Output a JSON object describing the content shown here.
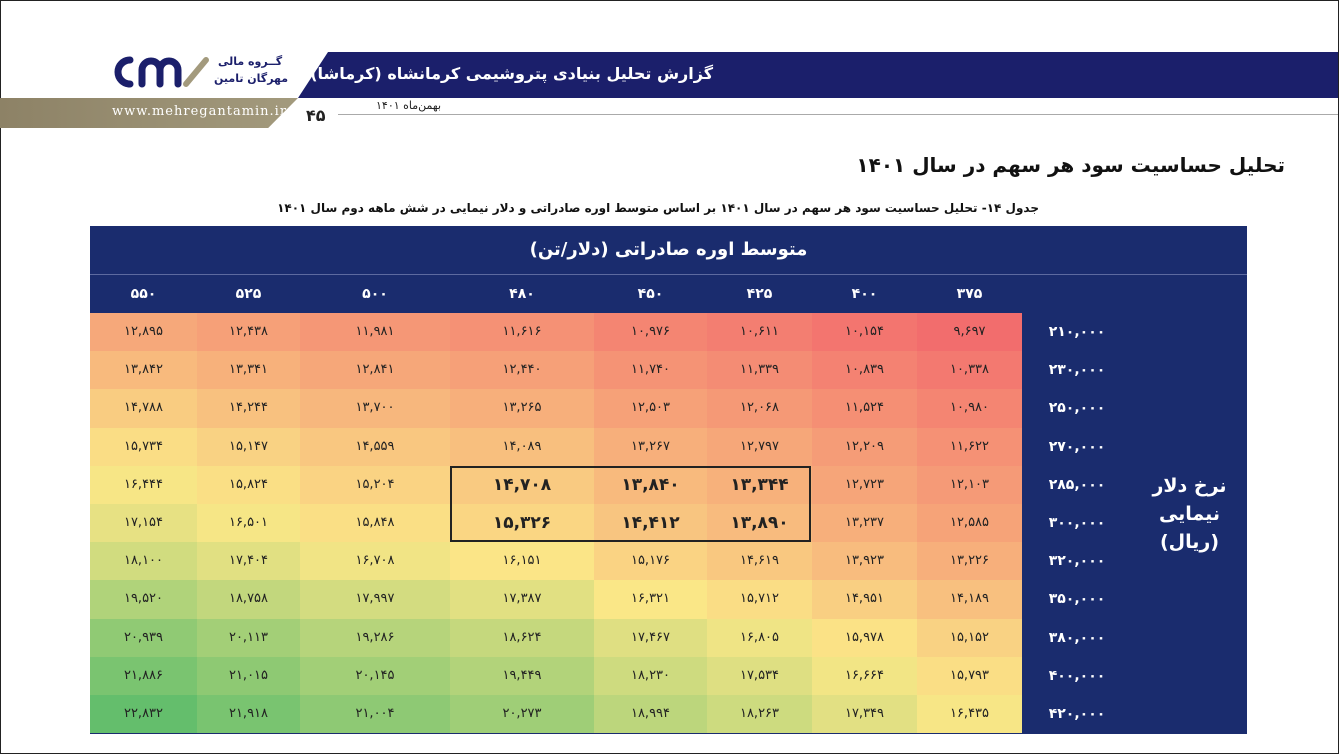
{
  "header": {
    "title": "گزارش تحلیل بنیادی پتروشیمی کرمانشاه (کرماشا)",
    "date": "بهمن‌ماه ۱۴۰۱",
    "page_number": "۴۵",
    "url": "www.mehregantamin.ir",
    "logo_line1": "گــروه مالی",
    "logo_line2": "مهرگان تامین"
  },
  "section_title": "تحلیل حساسیت سود هر سهم در سال ۱۴۰۱",
  "caption": "جدول ۱۴- تحلیل حساسیت سود هر سهم در سال ۱۴۰۱ بر اساس متوسط اوره صادراتی و دلار نیمایی در شش ماهه دوم سال ۱۴۰۱",
  "table": {
    "col_group_title": "متوسط اوره صادراتی (دلار/تن)",
    "row_group_title": "نرخ دلار نیمایی (ریال)",
    "col_headers": [
      "۵۵۰",
      "۵۲۵",
      "۵۰۰",
      "۴۸۰",
      "۴۵۰",
      "۴۲۵",
      "۴۰۰",
      "۳۷۵"
    ],
    "row_headers": [
      "۲۱۰,۰۰۰",
      "۲۳۰,۰۰۰",
      "۲۵۰,۰۰۰",
      "۲۷۰,۰۰۰",
      "۲۸۵,۰۰۰",
      "۳۰۰,۰۰۰",
      "۳۲۰,۰۰۰",
      "۳۵۰,۰۰۰",
      "۳۸۰,۰۰۰",
      "۴۰۰,۰۰۰",
      "۴۲۰,۰۰۰"
    ],
    "rows": [
      [
        "۱۲,۸۹۵",
        "۱۲,۴۳۸",
        "۱۱,۹۸۱",
        "۱۱,۶۱۶",
        "۱۰,۹۷۶",
        "۱۰,۶۱۱",
        "۱۰,۱۵۴",
        "۹,۶۹۷"
      ],
      [
        "۱۳,۸۴۲",
        "۱۳,۳۴۱",
        "۱۲,۸۴۱",
        "۱۲,۴۴۰",
        "۱۱,۷۴۰",
        "۱۱,۳۳۹",
        "۱۰,۸۳۹",
        "۱۰,۳۳۸"
      ],
      [
        "۱۴,۷۸۸",
        "۱۴,۲۴۴",
        "۱۳,۷۰۰",
        "۱۳,۲۶۵",
        "۱۲,۵۰۳",
        "۱۲,۰۶۸",
        "۱۱,۵۲۴",
        "۱۰,۹۸۰"
      ],
      [
        "۱۵,۷۳۴",
        "۱۵,۱۴۷",
        "۱۴,۵۵۹",
        "۱۴,۰۸۹",
        "۱۳,۲۶۷",
        "۱۲,۷۹۷",
        "۱۲,۲۰۹",
        "۱۱,۶۲۲"
      ],
      [
        "۱۶,۴۴۴",
        "۱۵,۸۲۴",
        "۱۵,۲۰۴",
        "۱۴,۷۰۸",
        "۱۳,۸۴۰",
        "۱۳,۳۴۴",
        "۱۲,۷۲۳",
        "۱۲,۱۰۳"
      ],
      [
        "۱۷,۱۵۴",
        "۱۶,۵۰۱",
        "۱۵,۸۴۸",
        "۱۵,۳۲۶",
        "۱۴,۴۱۲",
        "۱۳,۸۹۰",
        "۱۳,۲۳۷",
        "۱۲,۵۸۵"
      ],
      [
        "۱۸,۱۰۰",
        "۱۷,۴۰۴",
        "۱۶,۷۰۸",
        "۱۶,۱۵۱",
        "۱۵,۱۷۶",
        "۱۴,۶۱۹",
        "۱۳,۹۲۳",
        "۱۳,۲۲۶"
      ],
      [
        "۱۹,۵۲۰",
        "۱۸,۷۵۸",
        "۱۷,۹۹۷",
        "۱۷,۳۸۷",
        "۱۶,۳۲۱",
        "۱۵,۷۱۲",
        "۱۴,۹۵۱",
        "۱۴,۱۸۹"
      ],
      [
        "۲۰,۹۳۹",
        "۲۰,۱۱۳",
        "۱۹,۲۸۶",
        "۱۸,۶۲۴",
        "۱۷,۴۶۷",
        "۱۶,۸۰۵",
        "۱۵,۹۷۸",
        "۱۵,۱۵۲"
      ],
      [
        "۲۱,۸۸۶",
        "۲۱,۰۱۵",
        "۲۰,۱۴۵",
        "۱۹,۴۴۹",
        "۱۸,۲۳۰",
        "۱۷,۵۳۴",
        "۱۶,۶۶۴",
        "۱۵,۷۹۳"
      ],
      [
        "۲۲,۸۳۲",
        "۲۱,۹۱۸",
        "۲۱,۰۰۴",
        "۲۰,۲۷۳",
        "۱۸,۹۹۴",
        "۱۸,۲۶۳",
        "۱۷,۳۴۹",
        "۱۶,۴۳۵"
      ]
    ],
    "values_numeric": [
      [
        12895,
        12438,
        11981,
        11616,
        10976,
        10611,
        10154,
        9697
      ],
      [
        13842,
        13341,
        12841,
        12440,
        11740,
        11339,
        10839,
        10338
      ],
      [
        14788,
        14244,
        13700,
        13265,
        12503,
        12068,
        11524,
        10980
      ],
      [
        15734,
        15147,
        14559,
        14089,
        13267,
        12797,
        12209,
        11622
      ],
      [
        16444,
        15824,
        15204,
        14708,
        13840,
        13344,
        12723,
        12103
      ],
      [
        17154,
        16501,
        15848,
        15326,
        14412,
        13890,
        13237,
        12585
      ],
      [
        18100,
        17404,
        16708,
        16151,
        15176,
        14619,
        13923,
        13226
      ],
      [
        19520,
        18758,
        17997,
        17387,
        16321,
        15712,
        14951,
        14189
      ],
      [
        20939,
        20113,
        19286,
        18624,
        17467,
        16805,
        15978,
        15152
      ],
      [
        21886,
        21015,
        20145,
        19449,
        18230,
        17534,
        16664,
        15793
      ],
      [
        22832,
        21918,
        21004,
        20273,
        18994,
        18263,
        17349,
        16435
      ]
    ],
    "highlighted": {
      "rows": [
        4,
        5
      ],
      "cols": [
        3,
        4,
        5
      ]
    },
    "colors": {
      "table_bg": "#1a2c6e",
      "low": "#f26d6d",
      "mid": "#fbe787",
      "high": "#64be6c"
    }
  }
}
